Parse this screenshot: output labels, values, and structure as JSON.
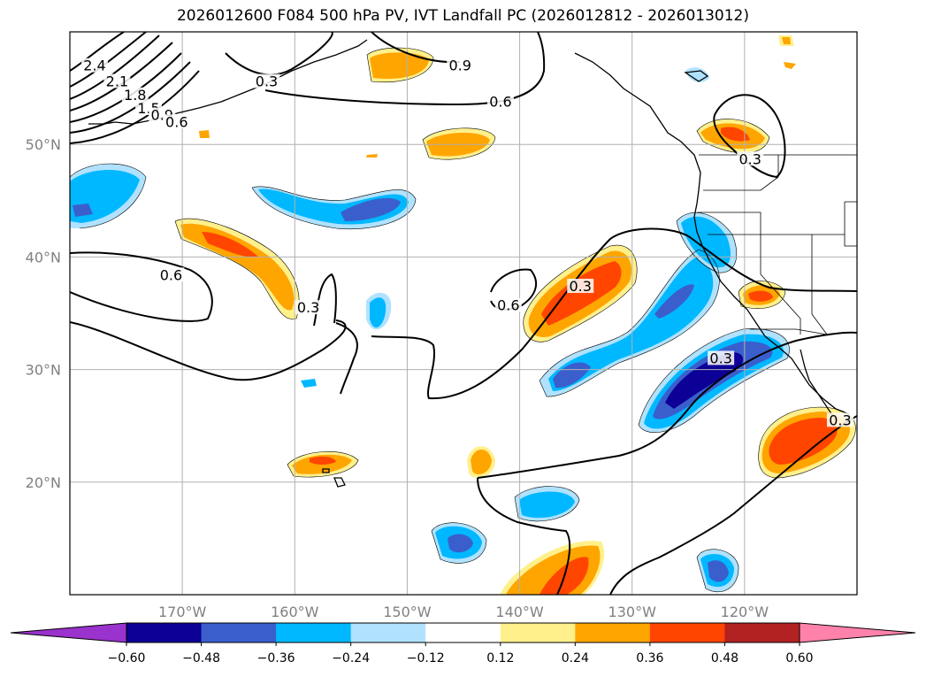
{
  "title": "2026012600 F084 500 hPa PV, IVT Landfall PC (2026012812 - 2026013012)",
  "map": {
    "lon_range": [
      -180,
      -110
    ],
    "lat_range": [
      10,
      60
    ],
    "lat_ticks": [
      {
        "value": 50,
        "label": "50°N"
      },
      {
        "value": 40,
        "label": "40°N"
      },
      {
        "value": 30,
        "label": "30°N"
      },
      {
        "value": 20,
        "label": "20°N"
      }
    ],
    "lon_ticks": [
      {
        "value": -170,
        "label": "170°W"
      },
      {
        "value": -160,
        "label": "160°W"
      },
      {
        "value": -150,
        "label": "150°W"
      },
      {
        "value": -140,
        "label": "140°W"
      },
      {
        "value": -130,
        "label": "130°W"
      },
      {
        "value": -120,
        "label": "120°W"
      }
    ],
    "gridlines": true
  },
  "contour_labels": [
    {
      "text": "2.4",
      "lon": -177.8,
      "lat": 56.8
    },
    {
      "text": "2.1",
      "lon": -175.8,
      "lat": 55.4
    },
    {
      "text": "1.8",
      "lon": -174.2,
      "lat": 54.2
    },
    {
      "text": "1.5",
      "lon": -173.0,
      "lat": 53.0
    },
    {
      "text": "0.9",
      "lon": -171.8,
      "lat": 52.4
    },
    {
      "text": "0.6",
      "lon": -170.5,
      "lat": 51.8
    },
    {
      "text": "0.3",
      "lon": -162.5,
      "lat": 55.4
    },
    {
      "text": "0.9",
      "lon": -145.3,
      "lat": 56.8
    },
    {
      "text": "0.6",
      "lon": -141.7,
      "lat": 53.6
    },
    {
      "text": "0.3",
      "lon": -119.5,
      "lat": 48.5
    },
    {
      "text": "0.6",
      "lon": -171.0,
      "lat": 38.2
    },
    {
      "text": "0.3",
      "lon": -158.8,
      "lat": 35.3
    },
    {
      "text": "0.6",
      "lon": -141.0,
      "lat": 35.5
    },
    {
      "text": "0.3",
      "lon": -134.6,
      "lat": 37.2
    },
    {
      "text": "0.3",
      "lon": -122.1,
      "lat": 30.8
    },
    {
      "text": "0.3",
      "lon": -111.5,
      "lat": 25.3
    }
  ],
  "colorbar": {
    "boundaries": [
      -0.72,
      -0.6,
      -0.48,
      -0.36,
      -0.24,
      -0.12,
      0.12,
      0.24,
      0.36,
      0.48,
      0.6,
      0.72
    ],
    "colors": [
      "#0c0096",
      "#3a5fcd",
      "#00b8ff",
      "#b0e2ff",
      "#ffffff",
      "#fff08c",
      "#ffa500",
      "#ff4500",
      "#b22222"
    ],
    "extend_low_color": "#9a32cd",
    "extend_high_color": "#ff82ab",
    "tick_labels": [
      "−0.60",
      "−0.48",
      "−0.36",
      "−0.24",
      "−0.12",
      "0.12",
      "0.24",
      "0.36",
      "0.48",
      "0.60"
    ]
  },
  "icon_names": [
    "ocean-basemap",
    "coastline",
    "state-borders"
  ]
}
